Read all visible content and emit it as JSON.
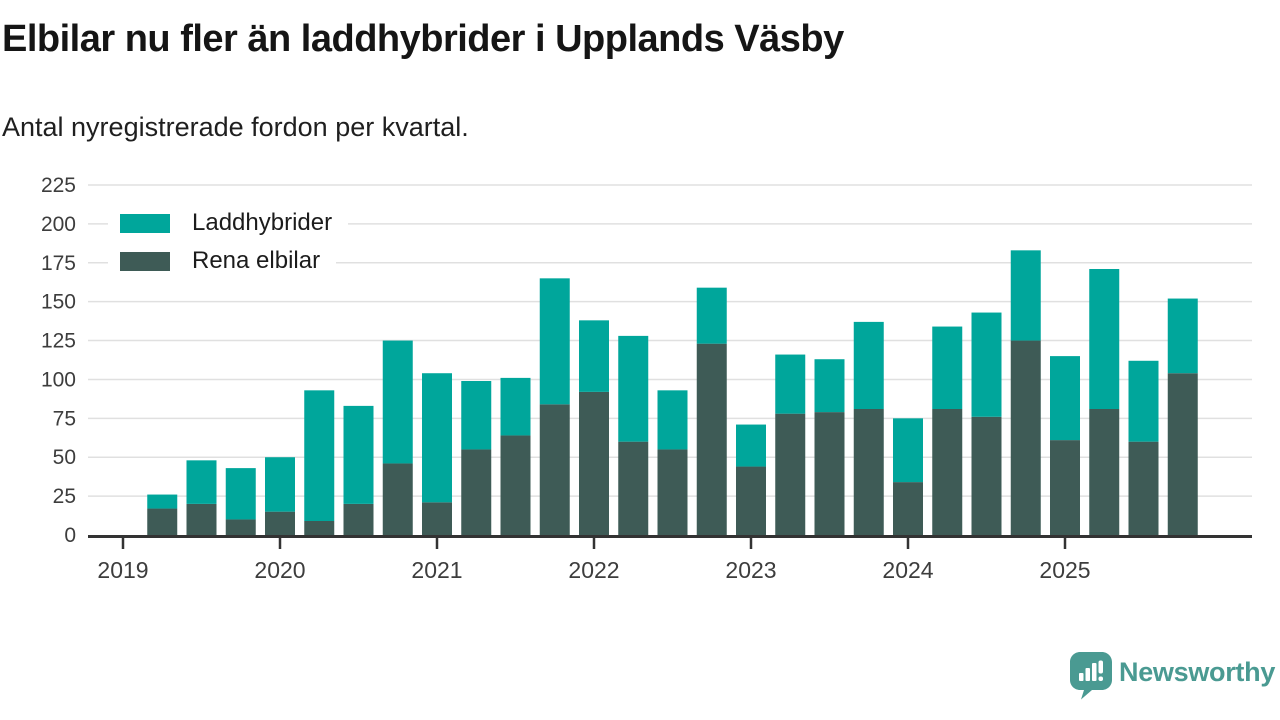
{
  "header": {
    "title": "Elbilar nu fler än laddhybrider i Upplands Väsby",
    "subtitle": "Antal nyregistrerade fordon per kvartal."
  },
  "footer": {
    "brand": "Newsworthy",
    "logo_icon": "speech-bubble-with-bar-chart-and-exclamation"
  },
  "colors": {
    "laddhybrider": "#00a69b",
    "rena_elbilar": "#3e5b56",
    "brand": "#4a9a92",
    "grid": "#e0e0e0",
    "axis": "#333333",
    "tick_text": "#3d3d3d"
  },
  "chart_data": {
    "type": "bar",
    "stacked": true,
    "title": "Elbilar nu fler än laddhybrider i Upplands Väsby",
    "subtitle": "Antal nyregistrerade fordon per kvartal.",
    "xlabel": "",
    "ylabel": "",
    "ylim": [
      0,
      225
    ],
    "ytick_step": 25,
    "grid": true,
    "legend_position": "top-left",
    "xticks": [
      "2019",
      "2020",
      "2021",
      "2022",
      "2023",
      "2024",
      "2025"
    ],
    "categories": [
      "2019 Q2",
      "2019 Q3",
      "2019 Q4",
      "2020 Q1",
      "2020 Q2",
      "2020 Q3",
      "2020 Q4",
      "2021 Q1",
      "2021 Q2",
      "2021 Q3",
      "2021 Q4",
      "2022 Q1",
      "2022 Q2",
      "2022 Q3",
      "2022 Q4",
      "2023 Q1",
      "2023 Q2",
      "2023 Q3",
      "2023 Q4",
      "2024 Q1",
      "2024 Q2",
      "2024 Q3",
      "2024 Q4",
      "2025 Q1",
      "2025 Q2",
      "2025 Q3",
      "2025 Q4"
    ],
    "stack_bottom": "Rena elbilar",
    "series": [
      {
        "name": "Laddhybrider",
        "color_key": "laddhybrider",
        "values": [
          9,
          28,
          33,
          35,
          84,
          63,
          79,
          83,
          44,
          37,
          81,
          46,
          68,
          38,
          36,
          27,
          38,
          34,
          56,
          41,
          53,
          67,
          58,
          54,
          90,
          52,
          48
        ]
      },
      {
        "name": "Rena elbilar",
        "color_key": "rena_elbilar",
        "values": [
          17,
          20,
          10,
          15,
          9,
          20,
          46,
          21,
          55,
          64,
          84,
          92,
          60,
          55,
          123,
          44,
          78,
          79,
          81,
          34,
          81,
          76,
          125,
          61,
          81,
          60,
          104
        ]
      }
    ],
    "totals": [
      26,
      48,
      43,
      50,
      93,
      83,
      125,
      104,
      99,
      101,
      165,
      138,
      128,
      93,
      159,
      71,
      116,
      113,
      137,
      75,
      134,
      143,
      183,
      115,
      171,
      112,
      152
    ]
  }
}
